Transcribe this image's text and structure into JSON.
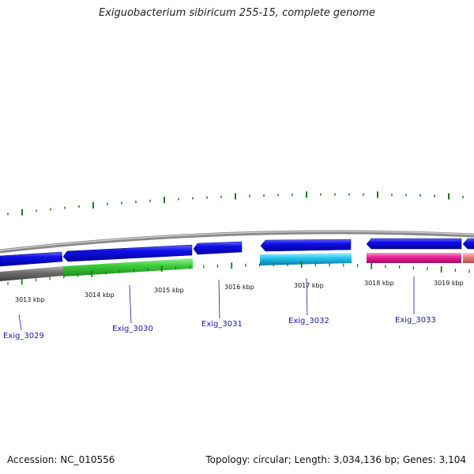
{
  "title": "Exiguobacterium sibiricum 255-15, complete genome",
  "footer": {
    "accession": "Accession: NC_010556",
    "summary": "Topology: circular; Length: 3,034,136 bp; Genes: 3,104"
  },
  "ticks": [
    "3013 kbp",
    "3014 kbp",
    "3015 kbp",
    "3016 kbp",
    "3017 kbp",
    "3018 kbp",
    "3019 kbp"
  ],
  "genes": [
    "Exig_3029",
    "Exig_3030",
    "Exig_3031",
    "Exig_3032",
    "Exig_3033"
  ],
  "colors": {
    "forward_gene": "#1010e8",
    "reverse_gene_1": "#3ccc3c",
    "reverse_gene_2": "#24c8f0",
    "reverse_gene_3": "#f0209a",
    "reverse_gene_4": "#f08080",
    "reverse_gene_grey": "#707070",
    "gc_skew": "#1a7a1a",
    "backbone": "#8a8a8a",
    "label_line": "#1a1a9a"
  }
}
